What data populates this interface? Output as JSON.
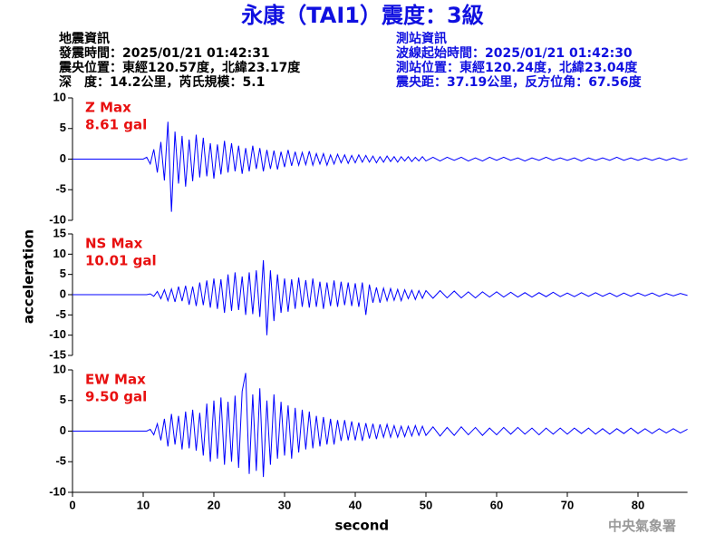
{
  "header": {
    "title": "永康（TAI1）震度：3級",
    "left": [
      "地震資訊",
      "發震時間：2025/01/21 01:42:31",
      "震央位置：東經120.57度，北緯23.17度",
      "深　度：14.2公里，芮氏規模：5.1"
    ],
    "right": [
      "測站資訊",
      "波線起始時間：2025/01/21 01:42:30",
      "測站位置：東經120.24度，北緯23.04度",
      "震央距：37.19公里，反方位角：67.56度"
    ]
  },
  "footer": "中央氣象署",
  "chart_data": [
    {
      "type": "line",
      "label": "Z Max",
      "max_label": "8.61 gal",
      "color": "#0000ff",
      "label_color": "#e81010",
      "x": [
        0,
        10,
        10.5,
        11,
        11.5,
        12,
        12.5,
        13,
        13.5,
        14,
        14.5,
        15,
        15.5,
        16,
        16.5,
        17,
        17.5,
        18,
        18.5,
        19,
        19.5,
        20,
        20.5,
        21,
        21.5,
        22,
        22.5,
        23,
        23.5,
        24,
        24.5,
        25,
        25.5,
        26,
        26.5,
        27,
        27.5,
        28,
        28.5,
        29,
        29.5,
        30,
        30.5,
        31,
        31.5,
        32,
        32.5,
        33,
        33.5,
        34,
        34.5,
        35,
        35.5,
        36,
        36.5,
        37,
        37.5,
        38,
        38.5,
        39,
        39.5,
        40,
        40.5,
        41,
        41.5,
        42,
        42.5,
        43,
        43.5,
        44,
        44.5,
        45,
        45.5,
        46,
        46.5,
        47,
        47.5,
        48,
        48.5,
        49,
        49.5,
        50,
        51,
        52,
        53,
        54,
        55,
        56,
        57,
        58,
        59,
        60,
        61,
        62,
        63,
        64,
        65,
        66,
        67,
        68,
        69,
        70,
        71,
        72,
        73,
        74,
        75,
        76,
        77,
        78,
        79,
        80,
        81,
        82,
        83,
        84,
        85,
        86,
        87
      ],
      "values": [
        0,
        0,
        0.3,
        -0.8,
        1.6,
        -2.2,
        2.8,
        -3.5,
        6.1,
        -8.61,
        4.5,
        -4,
        3.8,
        -4.5,
        3.2,
        -3.6,
        4,
        -3,
        3.5,
        -2.8,
        2.6,
        -3.2,
        2.4,
        -2.5,
        3,
        -2.2,
        2.6,
        -2,
        2.2,
        -2.4,
        1.8,
        -2,
        2.2,
        -1.6,
        1.8,
        -2,
        1.5,
        -1.6,
        1.4,
        -1.7,
        1.2,
        -1.3,
        1.5,
        -1.1,
        1.2,
        -1,
        1.1,
        -0.9,
        1.3,
        -1,
        0.9,
        -0.8,
        0.9,
        -1,
        0.7,
        -0.8,
        0.8,
        -0.6,
        0.7,
        -0.7,
        0.6,
        -0.6,
        0.7,
        -0.5,
        0.6,
        -0.5,
        0.5,
        -0.6,
        0.4,
        -0.5,
        0.5,
        -0.4,
        0.4,
        -0.5,
        0.4,
        -0.3,
        0.4,
        -0.4,
        0.3,
        -0.3,
        0.4,
        -0.3,
        0.3,
        -0.3,
        0.3,
        -0.2,
        0.3,
        -0.3,
        0.2,
        -0.3,
        0.3,
        -0.2,
        0.3,
        -0.2,
        0.2,
        -0.3,
        0.2,
        -0.2,
        0.3,
        -0.2,
        0.2,
        -0.2,
        0.2,
        -0.3,
        0.2,
        -0.2,
        0.2,
        -0.2,
        0.3,
        -0.2,
        0.2,
        -0.2,
        0.2,
        -0.2,
        0.2,
        -0.2,
        0.2,
        -0.2,
        0.1
      ],
      "xlim": [
        0,
        87
      ],
      "ylim": [
        -10,
        10
      ],
      "yticks": [
        -10,
        -5,
        0,
        5,
        10
      ]
    },
    {
      "type": "line",
      "label": "NS Max",
      "max_label": "10.01 gal",
      "color": "#0000ff",
      "label_color": "#e81010",
      "ylabel": "acceleration",
      "x": [
        0,
        10,
        10.5,
        11,
        11.5,
        12,
        12.5,
        13,
        13.5,
        14,
        14.5,
        15,
        15.5,
        16,
        16.5,
        17,
        17.5,
        18,
        18.5,
        19,
        19.5,
        20,
        20.5,
        21,
        21.5,
        22,
        22.5,
        23,
        23.5,
        24,
        24.5,
        25,
        25.5,
        26,
        26.5,
        27,
        27.5,
        28,
        28.5,
        29,
        29.5,
        30,
        30.5,
        31,
        31.5,
        32,
        32.5,
        33,
        33.5,
        34,
        34.5,
        35,
        35.5,
        36,
        36.5,
        37,
        37.5,
        38,
        38.5,
        39,
        39.5,
        40,
        40.5,
        41,
        41.5,
        42,
        42.5,
        43,
        43.5,
        44,
        44.5,
        45,
        45.5,
        46,
        46.5,
        47,
        47.5,
        48,
        48.5,
        49,
        49.5,
        50,
        51,
        52,
        53,
        54,
        55,
        56,
        57,
        58,
        59,
        60,
        61,
        62,
        63,
        64,
        65,
        66,
        67,
        68,
        69,
        70,
        71,
        72,
        73,
        74,
        75,
        76,
        77,
        78,
        79,
        80,
        81,
        82,
        83,
        84,
        85,
        86,
        87
      ],
      "values": [
        0,
        0,
        0,
        0.2,
        -0.4,
        0.8,
        -1,
        1.2,
        -1.5,
        1.4,
        -1.8,
        2,
        -1.6,
        2.2,
        -2.5,
        2,
        -2.8,
        3,
        -2.6,
        3.5,
        -3.2,
        4,
        -3.5,
        3.8,
        -4.5,
        5,
        -4,
        5.5,
        -3.8,
        4.5,
        -5,
        5.5,
        -4.8,
        6,
        -5.5,
        8.5,
        -10.01,
        6,
        -6.5,
        5,
        -4.5,
        4,
        -4.2,
        3.8,
        -3.5,
        4.2,
        -3,
        3.6,
        -3.2,
        4,
        -3,
        3.2,
        -3.5,
        3,
        -2.8,
        3.5,
        -3,
        3.2,
        -2.6,
        3,
        -2.8,
        2.8,
        -3,
        3,
        -5,
        2.5,
        -2,
        1.8,
        -2,
        1.6,
        -1.5,
        1.5,
        -1.4,
        1.3,
        -1.5,
        1.2,
        -1,
        1.1,
        -1.2,
        1,
        -0.9,
        1,
        -0.9,
        1,
        -0.8,
        0.9,
        -0.8,
        0.7,
        -0.8,
        0.7,
        -0.6,
        0.7,
        -0.6,
        0.6,
        -0.6,
        0.5,
        -0.6,
        0.5,
        -0.5,
        0.6,
        -0.5,
        0.4,
        -0.5,
        0.5,
        -0.4,
        0.5,
        -0.4,
        0.4,
        -0.5,
        0.4,
        -0.4,
        0.4,
        -0.3,
        0.4,
        -0.4,
        0.3,
        -0.3,
        0.3,
        -0.2
      ],
      "xlim": [
        0,
        87
      ],
      "ylim": [
        -15,
        15
      ],
      "yticks": [
        -15,
        -10,
        -5,
        0,
        5,
        10,
        15
      ]
    },
    {
      "type": "line",
      "label": "EW Max",
      "max_label": "9.50 gal",
      "color": "#0000ff",
      "label_color": "#e81010",
      "xlabel": "second",
      "x": [
        0,
        10,
        10.5,
        11,
        11.5,
        12,
        12.5,
        13,
        13.5,
        14,
        14.5,
        15,
        15.5,
        16,
        16.5,
        17,
        17.5,
        18,
        18.5,
        19,
        19.5,
        20,
        20.5,
        21,
        21.5,
        22,
        22.5,
        23,
        23.5,
        24,
        24.5,
        25,
        25.5,
        26,
        26.5,
        27,
        27.5,
        28,
        28.5,
        29,
        29.5,
        30,
        30.5,
        31,
        31.5,
        32,
        32.5,
        33,
        33.5,
        34,
        34.5,
        35,
        35.5,
        36,
        36.5,
        37,
        37.5,
        38,
        38.5,
        39,
        39.5,
        40,
        40.5,
        41,
        41.5,
        42,
        42.5,
        43,
        43.5,
        44,
        44.5,
        45,
        45.5,
        46,
        46.5,
        47,
        47.5,
        48,
        48.5,
        49,
        49.5,
        50,
        51,
        52,
        53,
        54,
        55,
        56,
        57,
        58,
        59,
        60,
        61,
        62,
        63,
        64,
        65,
        66,
        67,
        68,
        69,
        70,
        71,
        72,
        73,
        74,
        75,
        76,
        77,
        78,
        79,
        80,
        81,
        82,
        83,
        84,
        85,
        86,
        87
      ],
      "values": [
        0,
        0,
        0,
        0.3,
        -0.6,
        1.2,
        -1.5,
        2,
        -2.5,
        2.8,
        -2.2,
        2.5,
        -3,
        3.2,
        -2.8,
        3.5,
        -3.2,
        3,
        -4,
        4.5,
        -5,
        5,
        -4.5,
        5.5,
        -5.5,
        4.8,
        -5,
        5.8,
        -6,
        6.5,
        9.5,
        -7,
        6,
        -6.5,
        7,
        -7.5,
        5,
        -5.5,
        6,
        -4.5,
        4.8,
        -4,
        4.2,
        -4.5,
        3.8,
        -3.5,
        3.5,
        -3,
        3.2,
        -2.8,
        2.5,
        -2.5,
        2.3,
        -2.2,
        2,
        -2.2,
        1.8,
        -1.6,
        1.8,
        -1.5,
        1.6,
        -1.5,
        1.4,
        -1.6,
        1.3,
        -1.2,
        1.2,
        -1.3,
        1.1,
        -1,
        1.1,
        -1,
        0.9,
        -1,
        0.8,
        -0.9,
        0.8,
        -0.8,
        0.9,
        -0.7,
        0.8,
        -0.7,
        0.7,
        -0.8,
        0.6,
        -0.7,
        0.7,
        -0.6,
        0.6,
        -0.7,
        0.5,
        -0.6,
        0.6,
        -0.5,
        0.6,
        -0.5,
        0.5,
        -0.6,
        0.5,
        -0.5,
        0.5,
        -0.5,
        0.5,
        -0.4,
        0.5,
        -0.5,
        0.4,
        -0.5,
        0.4,
        -0.4,
        0.5,
        -0.4,
        0.4,
        -0.4,
        0.4,
        -0.3,
        0.4,
        -0.3,
        0.3
      ],
      "xlim": [
        0,
        87
      ],
      "ylim": [
        -10,
        10
      ],
      "yticks": [
        -10,
        -5,
        0,
        5,
        10
      ],
      "xticks": [
        0,
        10,
        20,
        30,
        40,
        50,
        60,
        70,
        80
      ]
    }
  ]
}
